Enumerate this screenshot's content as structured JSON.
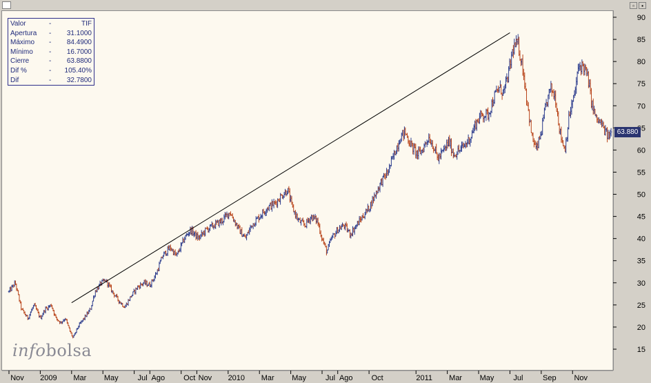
{
  "window": {
    "buttons": [
      "▫",
      "▪"
    ]
  },
  "info_box": {
    "rows": [
      {
        "label": "Valor",
        "dash": "-",
        "value": "TIF"
      },
      {
        "label": "Apertura",
        "dash": "-",
        "value": "31.1000"
      },
      {
        "label": "Máximo",
        "dash": "-",
        "value": "84.4900"
      },
      {
        "label": "Mínimo",
        "dash": "-",
        "value": "16.7000"
      },
      {
        "label": "Cierre",
        "dash": "-",
        "value": "63.8800"
      },
      {
        "label": "Dif %",
        "dash": "-",
        "value": "105.40%"
      },
      {
        "label": "Dif",
        "dash": "-",
        "value": "32.7800"
      }
    ]
  },
  "last_price_label": "63.880",
  "watermark": {
    "part1": "info",
    "part2": "bolsa"
  },
  "colors": {
    "up": "#2a3a8c",
    "down": "#b8441a",
    "background": "#fdf9ef",
    "trendline": "#000000",
    "price_tag": "#2a3470"
  },
  "chart_data": {
    "type": "line",
    "style": "ohlc-bars",
    "ticker": "TIF",
    "y_axis": {
      "side": "right",
      "range": [
        12,
        91
      ],
      "ticks": [
        15,
        20,
        25,
        30,
        35,
        40,
        45,
        50,
        55,
        60,
        65,
        70,
        75,
        80,
        85,
        90
      ]
    },
    "x_labels": [
      "Nov",
      "2009",
      "Mar",
      "May",
      "Jul",
      "Ago",
      "Oct",
      "Nov",
      "2010",
      "Mar",
      "May",
      "Jul",
      "Ago",
      "Oct",
      "2011",
      "Mar",
      "May",
      "Jul",
      "Sep",
      "Nov"
    ],
    "x_label_index": [
      0,
      2,
      4,
      6,
      8,
      9,
      11,
      12,
      14,
      16,
      18,
      20,
      21,
      23,
      26,
      28,
      30,
      32,
      34,
      36
    ],
    "months_total": 38.5,
    "price_path": [
      [
        0,
        28
      ],
      [
        0.4,
        30
      ],
      [
        0.8,
        24
      ],
      [
        1.2,
        22
      ],
      [
        1.6,
        25
      ],
      [
        2.0,
        22
      ],
      [
        2.3,
        24
      ],
      [
        2.7,
        25
      ],
      [
        3.0,
        22
      ],
      [
        3.3,
        21
      ],
      [
        3.6,
        22
      ],
      [
        3.9,
        19
      ],
      [
        4.1,
        17.5
      ],
      [
        4.4,
        20
      ],
      [
        4.8,
        22
      ],
      [
        5.2,
        24
      ],
      [
        5.5,
        28
      ],
      [
        5.9,
        30
      ],
      [
        6.2,
        30.5
      ],
      [
        6.6,
        28
      ],
      [
        7.0,
        26
      ],
      [
        7.4,
        24.5
      ],
      [
        7.8,
        27
      ],
      [
        8.2,
        29
      ],
      [
        8.6,
        30
      ],
      [
        9.0,
        29.5
      ],
      [
        9.4,
        32
      ],
      [
        9.8,
        36
      ],
      [
        10.3,
        38
      ],
      [
        10.7,
        36
      ],
      [
        11.2,
        40
      ],
      [
        11.6,
        42
      ],
      [
        12.1,
        40
      ],
      [
        12.6,
        42
      ],
      [
        13.1,
        43
      ],
      [
        13.6,
        44
      ],
      [
        14.1,
        46
      ],
      [
        14.4,
        44
      ],
      [
        14.7,
        42
      ],
      [
        15.1,
        40
      ],
      [
        15.5,
        43
      ],
      [
        16.0,
        45
      ],
      [
        16.5,
        47
      ],
      [
        17.0,
        48
      ],
      [
        17.5,
        50
      ],
      [
        17.8,
        51
      ],
      [
        18.1,
        47
      ],
      [
        18.5,
        44
      ],
      [
        18.9,
        43
      ],
      [
        19.3,
        45
      ],
      [
        19.7,
        44
      ],
      [
        20.0,
        40
      ],
      [
        20.3,
        37
      ],
      [
        20.6,
        40
      ],
      [
        21.0,
        42
      ],
      [
        21.4,
        43
      ],
      [
        21.8,
        41
      ],
      [
        22.2,
        43
      ],
      [
        22.6,
        45
      ],
      [
        23.0,
        47
      ],
      [
        23.4,
        50
      ],
      [
        23.8,
        53
      ],
      [
        24.2,
        55
      ],
      [
        24.6,
        59
      ],
      [
        25.0,
        63
      ],
      [
        25.3,
        64
      ],
      [
        25.7,
        61
      ],
      [
        26.1,
        59
      ],
      [
        26.4,
        60
      ],
      [
        26.8,
        63
      ],
      [
        27.1,
        61
      ],
      [
        27.4,
        58
      ],
      [
        27.8,
        60
      ],
      [
        28.1,
        62
      ],
      [
        28.4,
        59
      ],
      [
        28.8,
        60
      ],
      [
        29.1,
        61
      ],
      [
        29.5,
        63
      ],
      [
        29.8,
        66
      ],
      [
        30.2,
        68
      ],
      [
        30.6,
        68
      ],
      [
        31.0,
        72
      ],
      [
        31.3,
        74
      ],
      [
        31.6,
        73
      ],
      [
        31.9,
        77
      ],
      [
        32.2,
        83
      ],
      [
        32.5,
        84
      ],
      [
        32.8,
        79
      ],
      [
        33.1,
        71
      ],
      [
        33.4,
        63
      ],
      [
        33.7,
        60
      ],
      [
        34.0,
        64
      ],
      [
        34.3,
        70
      ],
      [
        34.6,
        74
      ],
      [
        34.9,
        72
      ],
      [
        35.2,
        64
      ],
      [
        35.5,
        60
      ],
      [
        35.8,
        68
      ],
      [
        36.1,
        72
      ],
      [
        36.4,
        79
      ],
      [
        36.7,
        79
      ],
      [
        37.0,
        76
      ],
      [
        37.2,
        71
      ],
      [
        37.5,
        67
      ],
      [
        37.8,
        66
      ],
      [
        38.1,
        64
      ],
      [
        38.3,
        63
      ],
      [
        38.5,
        64
      ]
    ],
    "trendline": [
      [
        4.0,
        25.5
      ],
      [
        32.0,
        86.5
      ]
    ]
  }
}
